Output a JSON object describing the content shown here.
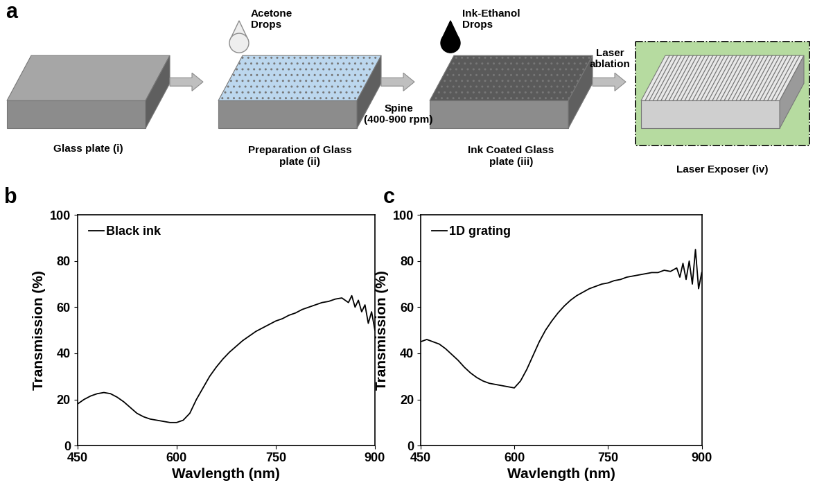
{
  "diagram": {
    "panel": "a",
    "boxes": [
      "Glass plate (i)",
      "Preparation of Glass\nplate (ii)",
      "Ink Coated Glass\nplate (iii)",
      "Laser Exposer (iv)"
    ],
    "drops": [
      "Acetone\nDrops",
      "Ink-Ethanol\nDrops"
    ],
    "arrow_labels": [
      "Spine\n(400-900 rpm)",
      "Laser\nablation"
    ]
  },
  "chart_data": [
    {
      "type": "line",
      "title": "b",
      "x_label": "Wavlength (nm)",
      "y_label": "Transmission (%)",
      "x": [
        450,
        460,
        470,
        480,
        490,
        500,
        510,
        520,
        530,
        540,
        550,
        560,
        570,
        580,
        590,
        600,
        610,
        620,
        630,
        640,
        650,
        660,
        670,
        680,
        690,
        700,
        710,
        720,
        730,
        740,
        750,
        760,
        770,
        780,
        790,
        800,
        810,
        820,
        830,
        840,
        850,
        860,
        865,
        870,
        875,
        880,
        885,
        890,
        895,
        900
      ],
      "series": [
        {
          "name": "Black ink",
          "color": "#000000",
          "values": [
            18,
            20,
            21.5,
            22.5,
            23,
            22.5,
            21,
            19,
            16.5,
            14,
            12.5,
            11.5,
            11,
            10.5,
            10,
            10,
            11,
            14,
            20,
            25,
            30,
            34,
            37.5,
            40.5,
            43,
            45.5,
            47.5,
            49.5,
            51,
            52.5,
            54,
            55,
            56.5,
            57.5,
            59,
            60,
            61,
            62,
            62.5,
            63.5,
            64,
            62,
            65,
            60,
            63,
            58,
            61,
            53,
            58,
            50
          ]
        }
      ],
      "xlim": [
        450,
        900
      ],
      "xticks": [
        450,
        600,
        750,
        900
      ],
      "ylim": [
        0,
        100
      ],
      "yticks": [
        0,
        20,
        40,
        60,
        80,
        100
      ],
      "legend": "upper left"
    },
    {
      "type": "line",
      "title": "c",
      "x_label": "Wavlength (nm)",
      "y_label": "Transmission (%)",
      "x": [
        450,
        460,
        470,
        480,
        490,
        500,
        510,
        520,
        530,
        540,
        550,
        560,
        570,
        580,
        590,
        600,
        610,
        620,
        630,
        640,
        650,
        660,
        670,
        680,
        690,
        700,
        710,
        720,
        730,
        740,
        750,
        760,
        770,
        780,
        790,
        800,
        810,
        820,
        830,
        840,
        850,
        860,
        865,
        870,
        875,
        880,
        885,
        890,
        895,
        900
      ],
      "series": [
        {
          "name": "1D grating",
          "color": "#000000",
          "values": [
            45,
            46,
            45,
            44,
            42,
            39.5,
            37,
            34,
            31.5,
            29.5,
            28,
            27,
            26.5,
            26,
            25.5,
            25,
            28,
            33,
            39,
            45,
            50,
            54,
            57.5,
            60.5,
            63,
            65,
            66.5,
            68,
            69,
            70,
            70.5,
            71.5,
            72,
            73,
            73.5,
            74,
            74.5,
            75,
            75,
            76,
            75.5,
            77,
            73,
            79,
            72,
            80,
            70,
            85,
            68,
            75
          ]
        }
      ],
      "xlim": [
        450,
        900
      ],
      "xticks": [
        450,
        600,
        750,
        900
      ],
      "ylim": [
        0,
        100
      ],
      "yticks": [
        0,
        20,
        40,
        60,
        80,
        100
      ],
      "legend": "upper left"
    }
  ]
}
